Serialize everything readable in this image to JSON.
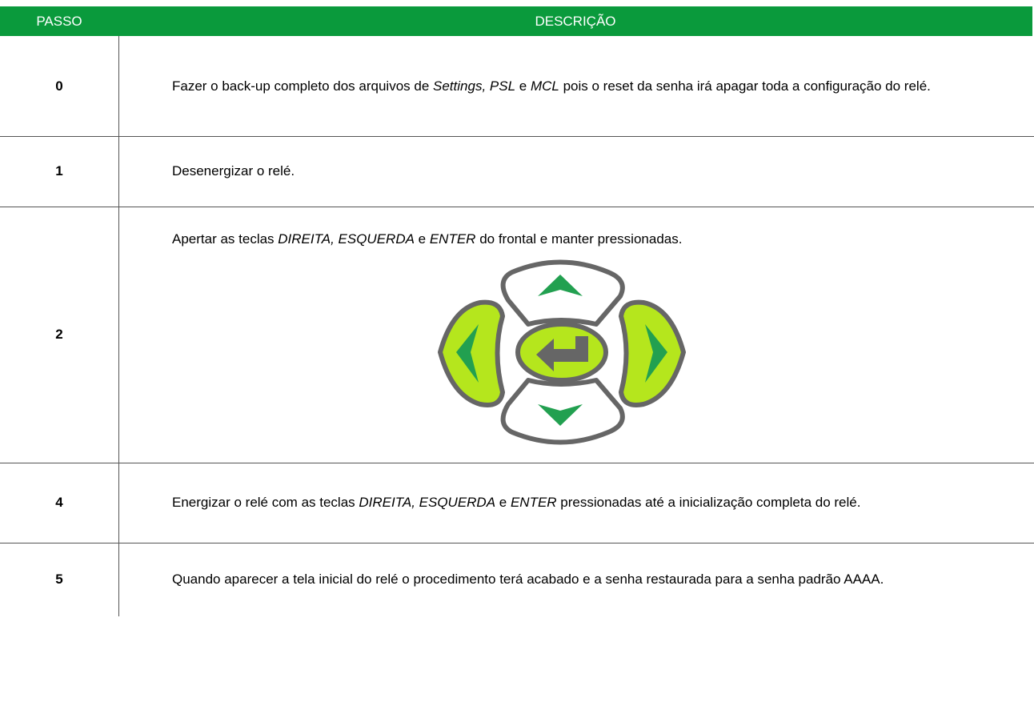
{
  "header": {
    "step": "PASSO",
    "description": "DESCRIÇÃO"
  },
  "table": {
    "rows": [
      {
        "step": "0",
        "description": [
          {
            "text": "Fazer o back-up completo dos arquivos de "
          },
          {
            "text": "Settings, PSL",
            "italic": true
          },
          {
            "text": " e "
          },
          {
            "text": "MCL",
            "italic": true
          },
          {
            "text": " pois o reset da senha irá apagar toda a configuração do relé."
          }
        ]
      },
      {
        "step": "1",
        "description": [
          {
            "text": "Desenergizar o relé."
          }
        ]
      },
      {
        "step": "2",
        "description": [
          {
            "text": "Apertar as teclas "
          },
          {
            "text": "DIREITA, ESQUERDA",
            "italic": true
          },
          {
            "text": " e "
          },
          {
            "text": "ENTER",
            "italic": true
          },
          {
            "text": " do frontal e manter pressionadas."
          }
        ]
      },
      {
        "step": "4",
        "description": [
          {
            "text": "Energizar o relé com as teclas "
          },
          {
            "text": "DIREITA, ESQUERDA",
            "italic": true
          },
          {
            "text": " e "
          },
          {
            "text": "ENTER",
            "italic": true
          },
          {
            "text": " pressionadas até a inicialização completa do relé."
          }
        ]
      },
      {
        "step": "5",
        "description": [
          {
            "text": "Quando aparecer a tela inicial do relé o procedimento terá acabado e a senha restaurada para a senha padrão AAAA."
          }
        ]
      }
    ]
  }
}
